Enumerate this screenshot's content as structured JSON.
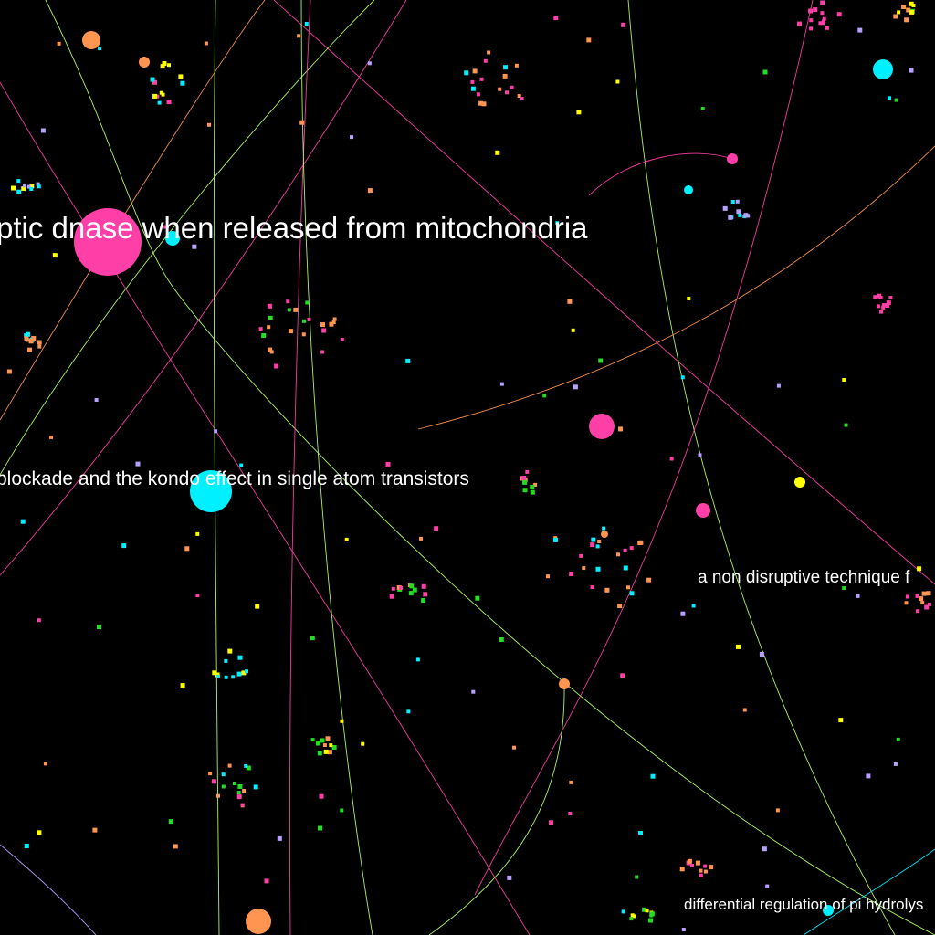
{
  "background": "#000000",
  "palette": {
    "pink": "#ff3fa8",
    "cyan": "#00f0ff",
    "orange": "#ff9550",
    "yellow": "#ffff00",
    "green": "#22dd22",
    "lime": "#b4ff6a",
    "violet": "#b8a0ff"
  },
  "labels": {
    "l1": "ptic dnase when released from mitochondria",
    "l2": "blockade and the kondo effect in single atom transistors",
    "l3": "a non disruptive technique f",
    "l4": "differential regulation of pi hydrolys"
  }
}
